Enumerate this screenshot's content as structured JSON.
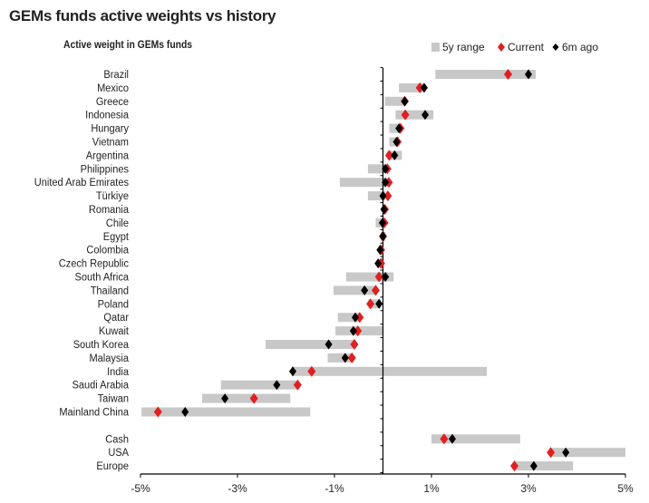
{
  "chart_data": {
    "type": "range-dot",
    "title": "GEMs funds active weights vs history",
    "subtitle": "Active weight in GEMs funds",
    "xlim": [
      -5,
      5
    ],
    "xticks": [
      "-5%",
      "-3%",
      "-1%",
      "1%",
      "3%",
      "5%"
    ],
    "xtick_values": [
      -5,
      -3,
      -1,
      1,
      3,
      5
    ],
    "grid": false,
    "legend": {
      "placement": "top-right",
      "entries": [
        "5y range",
        "Current",
        "6m ago"
      ]
    },
    "colors": {
      "range": "#c8c8c8",
      "current": "#e02020",
      "six_months_ago": "#000000"
    },
    "groups": [
      {
        "categories": [
          "Brazil",
          "Mexico",
          "Greece",
          "Indonesia",
          "Hungary",
          "Vietnam",
          "Argentina",
          "Philippines",
          "United Arab Emirates",
          "Türkiye",
          "Romania",
          "Chile",
          "Egypt",
          "Colombia",
          "Czech Republic",
          "South Africa",
          "Thailand",
          "Poland",
          "Qatar",
          "Kuwait",
          "South Korea",
          "Malaysia",
          "India",
          "Saudi Arabia",
          "Taiwan",
          "Mainland China"
        ],
        "range_low": [
          1.08,
          0.33,
          0.04,
          0.26,
          0.13,
          0.13,
          0.09,
          -0.31,
          -0.89,
          -0.31,
          0.0,
          -0.15,
          -0.05,
          -0.08,
          -0.1,
          -0.76,
          -1.02,
          -0.3,
          -0.93,
          -0.98,
          -2.42,
          -1.14,
          -1.88,
          -3.34,
          -3.73,
          -4.98
        ],
        "range_high": [
          3.15,
          0.82,
          0.45,
          1.04,
          0.39,
          0.33,
          0.39,
          0.03,
          0.03,
          0.05,
          0.05,
          0.03,
          0.05,
          0.0,
          0.0,
          0.22,
          -0.12,
          -0.05,
          -0.46,
          0.0,
          -0.6,
          -0.63,
          2.14,
          -1.79,
          -1.91,
          -1.5
        ],
        "current": [
          2.58,
          0.76,
          0.45,
          0.46,
          0.36,
          0.3,
          0.13,
          0.09,
          0.12,
          0.1,
          0.04,
          0.03,
          0.0,
          -0.04,
          -0.04,
          -0.08,
          -0.15,
          -0.26,
          -0.48,
          -0.52,
          -0.59,
          -0.64,
          -1.47,
          -1.76,
          -2.66,
          -4.64
        ],
        "six_months_ago": [
          3.0,
          0.85,
          0.45,
          0.87,
          0.33,
          0.28,
          0.24,
          0.05,
          0.05,
          0.0,
          0.02,
          -0.01,
          0.0,
          -0.06,
          -0.1,
          0.05,
          -0.38,
          -0.08,
          -0.57,
          -0.61,
          -1.12,
          -0.78,
          -1.86,
          -2.19,
          -3.26,
          -4.08
        ]
      },
      {
        "categories": [
          "Cash",
          "USA",
          "Europe"
        ],
        "range_low": [
          1.0,
          3.45,
          2.73
        ],
        "range_high": [
          2.83,
          5.0,
          3.92
        ],
        "current": [
          1.26,
          3.46,
          2.71
        ],
        "six_months_ago": [
          1.43,
          3.77,
          3.11
        ]
      }
    ]
  }
}
